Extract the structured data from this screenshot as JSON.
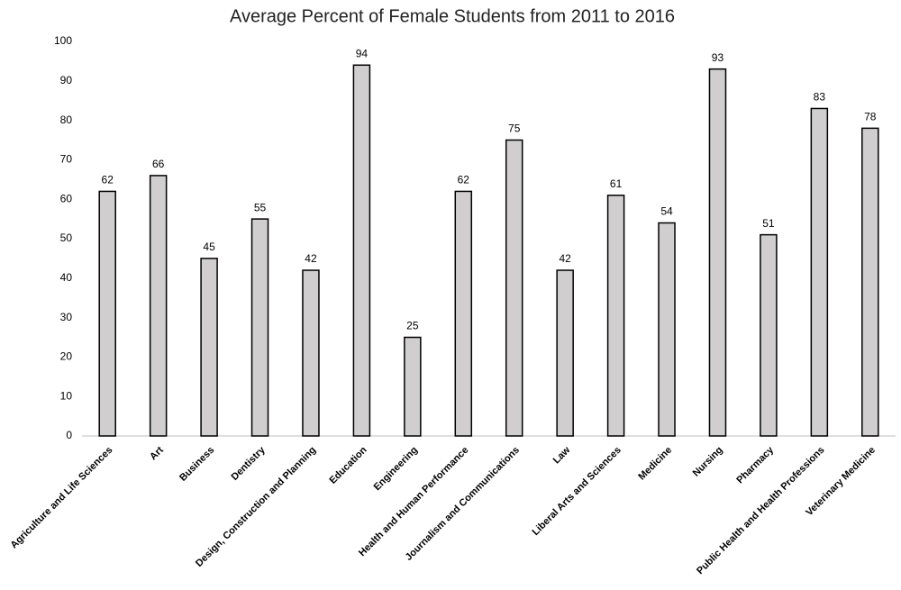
{
  "chart_data": {
    "type": "bar",
    "title": "Average Percent of Female Students from 2011 to 2016",
    "categories": [
      "Agriculture and Life Sciences",
      "Art",
      "Business",
      "Dentistry",
      "Design, Construction and Planning",
      "Education",
      "Engineering",
      "Health and Human Performance",
      "Journalism and Communications",
      "Law",
      "Liberal Arts and Sciences",
      "Medicine",
      "Nursing",
      "Pharmacy",
      "Public Health and Health Professions",
      "Veterinary Medicine"
    ],
    "values": [
      62,
      66,
      45,
      55,
      42,
      94,
      25,
      62,
      75,
      42,
      61,
      54,
      93,
      51,
      83,
      78
    ],
    "color": "#d0cece",
    "ylim": [
      0,
      100
    ],
    "yticks": [
      0,
      10,
      20,
      30,
      40,
      50,
      60,
      70,
      80,
      90,
      100
    ],
    "grid": false
  }
}
